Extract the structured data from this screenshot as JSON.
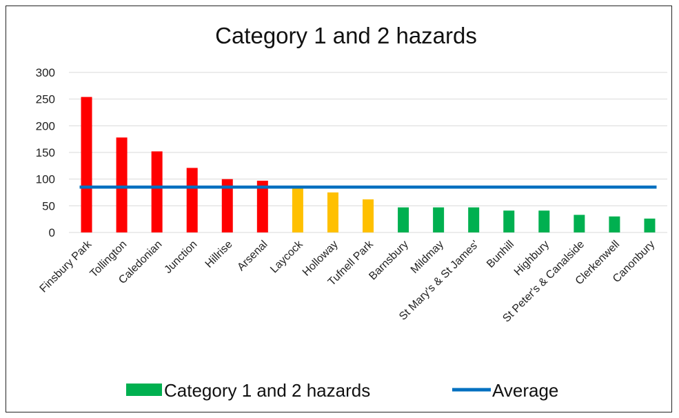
{
  "chart_data": {
    "type": "bar",
    "title": "Category 1 and 2 hazards",
    "categories": [
      "Finsbury Park",
      "Tollington",
      "Caledonian",
      "Junction",
      "Hillrise",
      "Arsenal",
      "Laycock",
      "Holloway",
      "Tufnell Park",
      "Barnsbury",
      "Mildmay",
      "St Mary's & St James'",
      "Bunhill",
      "Highbury",
      "St Peter's & Canalside",
      "Clerkenwell",
      "Canonbury"
    ],
    "series": [
      {
        "name": "Category 1 and 2 hazards",
        "type": "bar",
        "values": [
          254,
          178,
          152,
          121,
          100,
          97,
          84,
          75,
          62,
          47,
          47,
          47,
          41,
          41,
          33,
          30,
          26
        ],
        "colors": [
          "#ff0000",
          "#ff0000",
          "#ff0000",
          "#ff0000",
          "#ff0000",
          "#ff0000",
          "#ffc000",
          "#ffc000",
          "#ffc000",
          "#00b050",
          "#00b050",
          "#00b050",
          "#00b050",
          "#00b050",
          "#00b050",
          "#00b050",
          "#00b050"
        ],
        "legend_color": "#00b050"
      },
      {
        "name": "Average",
        "type": "line",
        "value": 85,
        "color": "#0070c0"
      }
    ],
    "yticks": [
      0,
      50,
      100,
      150,
      200,
      250,
      300
    ],
    "ylim": [
      0,
      300
    ],
    "grid": true,
    "legend": "bottom"
  }
}
